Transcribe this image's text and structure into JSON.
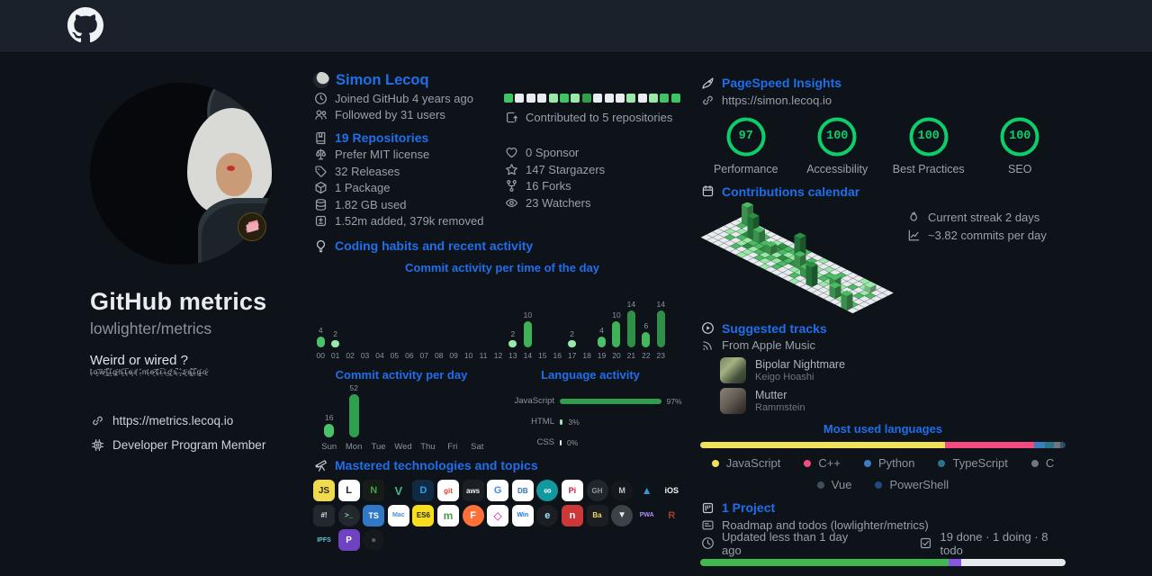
{
  "accent": {
    "blue": "#1f6feb",
    "gauge_green": "#0cce6b",
    "text_gray": "#98a0a8"
  },
  "profile_card": {
    "title": "GitHub metrics",
    "subtitle": "lowlighter/metrics",
    "quote": "Weird or wired ?",
    "quote_noise": "l̴̟̍o̶͚͠w̷̤̃l̵͇̚i̶̝͒g̷͍̈h̶̰̋t̵͈̿e̶͓͑r̸̙̈ ̴͔̽m̵͉̓e̷̝͠t̶͍̊r̵̤̿ï̶͜c̸͚̈s̵̟̚ ̶͓̐z̷̰̈a̶͇͌l̵͙̚g̶̱̈o̷͍̊",
    "website": "https://metrics.lecoq.io",
    "membership": "Developer Program Member"
  },
  "user": {
    "name": "Simon Lecoq",
    "facts": [
      {
        "icon": "clock",
        "text": "Joined GitHub 4 years ago"
      },
      {
        "icon": "people",
        "text": "Followed by 31 users"
      }
    ],
    "repositories_label": "19 Repositories",
    "repo_facts": [
      {
        "icon": "law",
        "text": "Prefer MIT license"
      },
      {
        "icon": "tag",
        "text": "32 Releases"
      },
      {
        "icon": "package",
        "text": "1 Package"
      },
      {
        "icon": "database",
        "text": "1.82 GB used"
      },
      {
        "icon": "diff",
        "text": "1.52m added, 379k removed"
      }
    ],
    "contributions": {
      "levels": [
        2,
        0,
        0,
        0,
        1,
        2,
        1,
        3,
        0,
        0,
        0,
        1,
        0,
        1,
        2,
        2
      ],
      "palette": [
        "#e9ecf0",
        "#9be9a8",
        "#40c463",
        "#2e9e4b"
      ],
      "caption": "Contributed to 5 repositories"
    },
    "community": [
      {
        "icon": "heart",
        "text": "0 Sponsor"
      },
      {
        "icon": "star",
        "text": "147 Stargazers"
      },
      {
        "icon": "fork",
        "text": "16 Forks"
      },
      {
        "icon": "eye",
        "text": "23 Watchers"
      }
    ]
  },
  "sections": {
    "coding_habits": "Coding habits and recent activity",
    "mastered": "Mastered technologies and topics"
  },
  "pagespeed": {
    "title": "PageSpeed Insights",
    "url": "https://simon.lecoq.io"
  },
  "calendar": {
    "title": "Contributions calendar",
    "streak": "Current streak 2 days",
    "average": "~3.82 commits per day"
  },
  "music": {
    "title": "Suggested tracks",
    "source": "From Apple Music",
    "tracks": [
      {
        "title": "Bipolar Nightmare",
        "artist": "Keigo Hoashi"
      },
      {
        "title": "Mutter",
        "artist": "Rammstein"
      }
    ]
  },
  "project": {
    "title": "1 Project",
    "description": "Roadmap and todos (lowlighter/metrics)",
    "updated": "Updated less than 1 day ago",
    "stats": "19 done · 1 doing · 8 todo"
  },
  "chart_data": [
    {
      "id": "commits_per_hour",
      "type": "bar",
      "title": "Commit activity per time of the day",
      "categories": [
        "00",
        "01",
        "02",
        "03",
        "04",
        "05",
        "06",
        "07",
        "08",
        "09",
        "10",
        "11",
        "12",
        "13",
        "14",
        "15",
        "16",
        "17",
        "18",
        "19",
        "20",
        "21",
        "22",
        "23"
      ],
      "values": [
        4,
        2,
        0,
        0,
        0,
        0,
        0,
        0,
        0,
        0,
        0,
        0,
        0,
        2,
        10,
        0,
        0,
        2,
        0,
        4,
        10,
        14,
        6,
        14
      ],
      "colors": [
        "#4ac26b",
        "#9be9a8",
        null,
        null,
        null,
        null,
        null,
        null,
        null,
        null,
        null,
        null,
        null,
        "#9be9a8",
        "#3fb257",
        null,
        null,
        "#9be9a8",
        null,
        "#4ac26b",
        "#3fb257",
        "#2e8f47",
        "#44b85f",
        "#2e8f47"
      ],
      "ylim": [
        0,
        14
      ],
      "grid": false
    },
    {
      "id": "commits_per_day",
      "type": "bar",
      "title": "Commit activity per day",
      "categories": [
        "Sun",
        "Mon",
        "Tue",
        "Wed",
        "Thu",
        "Fri",
        "Sat"
      ],
      "values": [
        16,
        52,
        0,
        0,
        0,
        0,
        0
      ],
      "colors": [
        "#4ac26b",
        "#2f9e4d",
        null,
        null,
        null,
        null,
        null
      ],
      "ylim": [
        0,
        52
      ],
      "grid": false
    },
    {
      "id": "language_activity",
      "type": "bar",
      "title": "Language activity",
      "categories": [
        "JavaScript",
        "HTML",
        "CSS"
      ],
      "values": [
        97,
        3,
        0
      ],
      "unit": "%",
      "colors": [
        "#2f9e4d",
        "#9be9a8",
        "#e9ecf0"
      ]
    },
    {
      "id": "most_used_languages",
      "type": "bar",
      "title": "Most used languages",
      "series": [
        {
          "name": "JavaScript",
          "value": 64.8,
          "color": "#f1e05a"
        },
        {
          "name": "C++",
          "value": 23.5,
          "color": "#f34b7d"
        },
        {
          "name": "Python",
          "value": 2.9,
          "color": "#3b7dc0"
        },
        {
          "name": "TypeScript",
          "value": 2.3,
          "color": "#2b7489"
        },
        {
          "name": "C",
          "value": 1.6,
          "color": "#6e7681"
        },
        {
          "name": "Vue",
          "value": 0.9,
          "color": "#41505f"
        },
        {
          "name": "PowerShell",
          "value": 0.6,
          "color": "#1f4a7d"
        }
      ],
      "legend_split": 5
    },
    {
      "id": "pagespeed_scores",
      "type": "bar",
      "title": "PageSpeed scores",
      "scores": [
        {
          "label": "Performance",
          "value": 97
        },
        {
          "label": "Accessibility",
          "value": 100
        },
        {
          "label": "Best Practices",
          "value": 100
        },
        {
          "label": "SEO",
          "value": 100
        }
      ],
      "ring_color": "#0cce6b"
    },
    {
      "id": "project_progress",
      "type": "bar",
      "title": "Project progress",
      "segments": [
        {
          "name": "done",
          "count": 19,
          "color": "#3fb950"
        },
        {
          "name": "doing",
          "count": 1,
          "color": "#8957e5"
        },
        {
          "name": "todo",
          "count": 8,
          "color": "#e6e9ed"
        }
      ]
    },
    {
      "id": "contributions_calendar_iso",
      "type": "heatmap",
      "title": "Contributions calendar",
      "palette": [
        "#e9ecef",
        "#9be9a8",
        "#4cb963",
        "#2c8f44"
      ],
      "grid": [
        "..1.......12..1......1....",
        ".2..12.13221.2..1.2...1...",
        "..13332232112321.21..2.12.",
        ".1.2122321323122121.1..2..",
        "..2.13121212.11.2.1..12...",
        "....2.1.21.2..2..1....1.2.",
        "......1...1....1........2."
      ],
      "towers": [
        {
          "r": 0,
          "c": 1,
          "h": 20,
          "l": 2
        },
        {
          "r": 1,
          "c": 3,
          "h": 10,
          "l": 2
        },
        {
          "r": 2,
          "c": 4,
          "h": 24,
          "l": 3
        },
        {
          "r": 2,
          "c": 5,
          "h": 12,
          "l": 2
        },
        {
          "r": 3,
          "c": 8,
          "h": 9,
          "l": 2
        },
        {
          "r": 2,
          "c": 12,
          "h": 28,
          "l": 3
        },
        {
          "r": 3,
          "c": 13,
          "h": 14,
          "l": 2
        },
        {
          "r": 4,
          "c": 15,
          "h": 10,
          "l": 2
        },
        {
          "r": 5,
          "c": 17,
          "h": 22,
          "l": 3
        },
        {
          "r": 3,
          "c": 19,
          "h": 8,
          "l": 2
        },
        {
          "r": 5,
          "c": 21,
          "h": 12,
          "l": 2
        },
        {
          "r": 6,
          "c": 24,
          "h": 16,
          "l": 2
        },
        {
          "r": 1,
          "c": 23,
          "h": 6,
          "l": 1
        }
      ]
    }
  ],
  "tech": {
    "rows": [
      [
        {
          "name": "javascript",
          "label": "JS",
          "bg": "#f0db4f",
          "fg": "#2b2b20",
          "fs": 10
        },
        {
          "name": "linux",
          "label": "L",
          "bg": "#ffffff",
          "fg": "#222222",
          "fs": 11
        },
        {
          "name": "nodejs",
          "label": "N",
          "bg": "#161d18",
          "fg": "#43a047",
          "fs": 11
        },
        {
          "name": "vuejs",
          "label": "V",
          "bg": "transparent",
          "fg": "#41b883",
          "fs": 13
        },
        {
          "name": "docker",
          "label": "D",
          "bg": "#102a43",
          "fg": "#28a2e6",
          "fs": 11
        },
        {
          "name": "git",
          "label": "git",
          "bg": "#ffffff",
          "fg": "#d9472b",
          "fs": 8
        },
        {
          "name": "aws",
          "label": "aws",
          "bg": "#1b1f23",
          "fg": "#f2f2f2",
          "fs": 8
        },
        {
          "name": "google",
          "label": "G",
          "bg": "#ffffff",
          "fg": "#4285f4",
          "fs": 11
        },
        {
          "name": "sql-database",
          "label": "DB",
          "bg": "#ffffff",
          "fg": "#2f6fb5",
          "fs": 8
        },
        {
          "name": "arduino",
          "label": "∞",
          "bg": "#12999f",
          "fg": "#ffffff",
          "fs": 12,
          "shape": "circle"
        },
        {
          "name": "raspberry-pi",
          "label": "Pi",
          "bg": "#ffffff",
          "fg": "#c51a4a",
          "fs": 9
        },
        {
          "name": "github",
          "label": "GH",
          "bg": "#20262e",
          "fg": "#9198a1",
          "fs": 8,
          "shape": "circle"
        },
        {
          "name": "metal-disc",
          "label": "M",
          "bg": "#15181c",
          "fg": "#c0c6cc",
          "fs": 9,
          "shape": "circle"
        },
        {
          "name": "azure",
          "label": "▲",
          "bg": "transparent",
          "fg": "#2f9bd8",
          "fs": 12
        },
        {
          "name": "ios",
          "label": "iOS",
          "bg": "transparent",
          "fg": "#f2f2f2",
          "fs": 9
        }
      ],
      [
        {
          "name": "bash",
          "label": "#!",
          "bg": "#23272e",
          "fg": "#e8e8e8",
          "fs": 8
        },
        {
          "name": "terminal",
          "label": ">_",
          "bg": "#23272e",
          "fg": "#7ee2b8",
          "fs": 8,
          "shape": "circle"
        },
        {
          "name": "typescript",
          "label": "TS",
          "bg": "#3178c6",
          "fg": "#ffffff",
          "fs": 9
        },
        {
          "name": "macos",
          "label": "Mac",
          "bg": "#ffffff",
          "fg": "#4a90d9",
          "fs": 7
        },
        {
          "name": "es6",
          "label": "ES6",
          "bg": "#f7df1e",
          "fg": "#24241c",
          "fs": 8
        },
        {
          "name": "mongodb",
          "label": "m",
          "bg": "#ffffff",
          "fg": "#47a248",
          "fs": 12
        },
        {
          "name": "firefox",
          "label": "F",
          "bg": "#ff7139",
          "fg": "#ffffff",
          "fs": 11,
          "shape": "circle"
        },
        {
          "name": "graphql",
          "label": "◇",
          "bg": "#ffffff",
          "fg": "#e10098",
          "fs": 12
        },
        {
          "name": "windows",
          "label": "Win",
          "bg": "#ffffff",
          "fg": "#1f6feb",
          "fs": 7
        },
        {
          "name": "electron",
          "label": "e",
          "bg": "#1b1f23",
          "fg": "#9feaf9",
          "fs": 11,
          "shape": "circle"
        },
        {
          "name": "npm",
          "label": "n",
          "bg": "#cb3837",
          "fg": "#ffffff",
          "fs": 11
        },
        {
          "name": "babel",
          "label": "Ba",
          "bg": "#1b1f23",
          "fg": "#f5da55",
          "fs": 8
        },
        {
          "name": "v-logo",
          "label": "▼",
          "bg": "#3d4248",
          "fg": "#e6e8ea",
          "fs": 10,
          "shape": "circle"
        },
        {
          "name": "pwa",
          "label": "PWA",
          "bg": "transparent",
          "fg": "#b18cf2",
          "fs": 7
        },
        {
          "name": "rust",
          "label": "R",
          "bg": "transparent",
          "fg": "#a43f2a",
          "fs": 11
        }
      ],
      [
        {
          "name": "ipfs",
          "label": "IPFS",
          "bg": "transparent",
          "fg": "#5fc7cd",
          "fs": 7
        },
        {
          "name": "purple-logo",
          "label": "P",
          "bg": "#6f42c1",
          "fg": "#ffffff",
          "fs": 10
        },
        {
          "name": "dark-logo",
          "label": "●",
          "bg": "#15181c",
          "fg": "#565c64",
          "fs": 10,
          "shape": "circle"
        }
      ]
    ]
  }
}
